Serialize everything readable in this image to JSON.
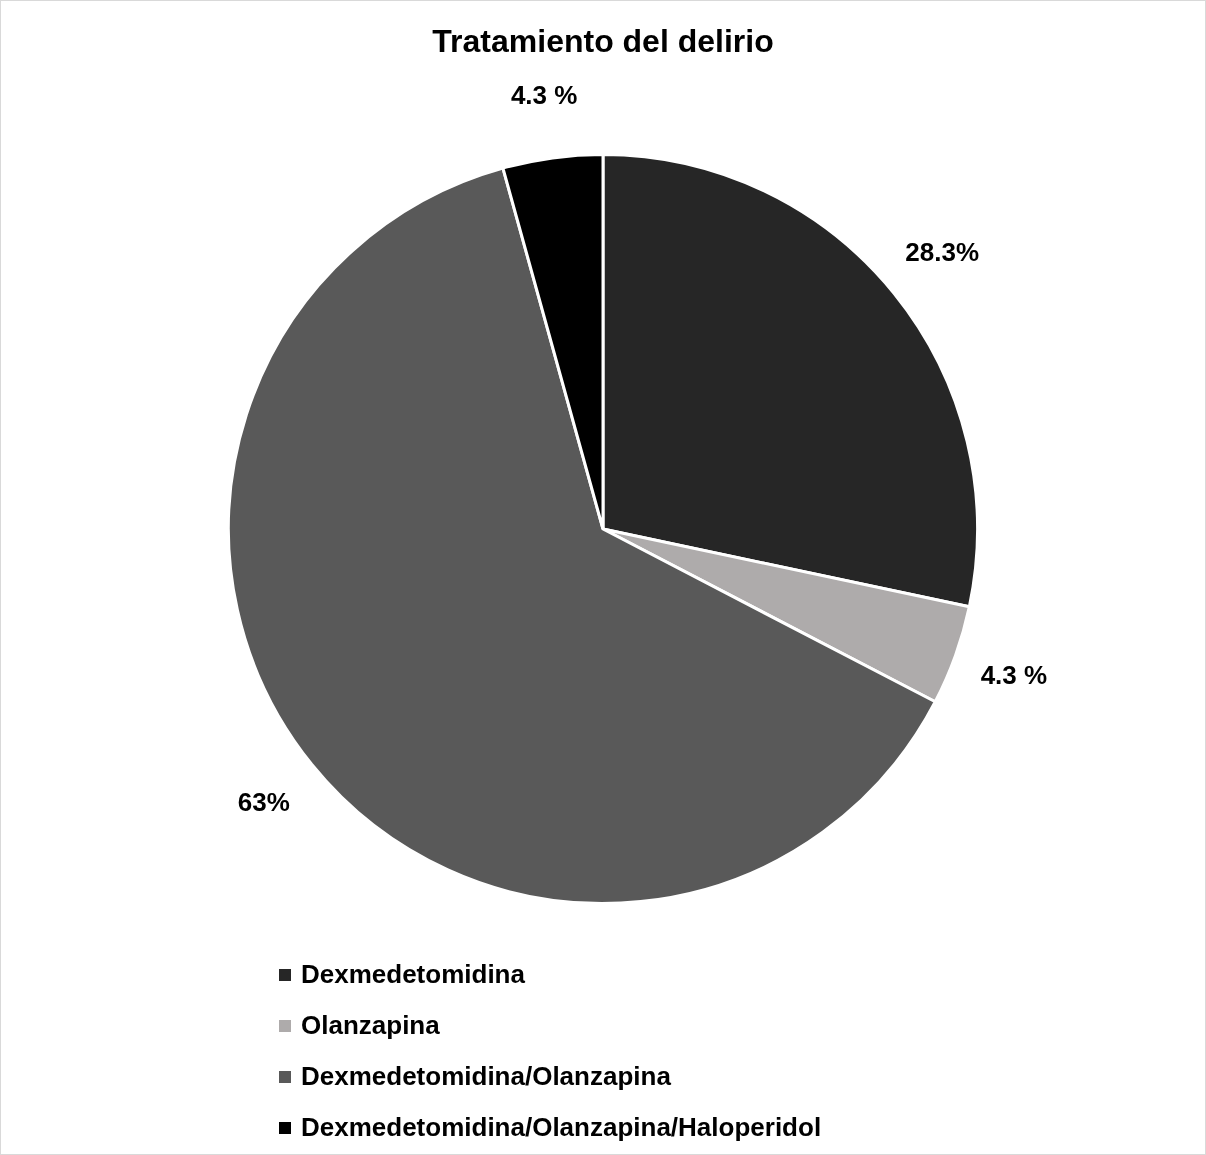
{
  "chart_data": {
    "type": "pie",
    "title": "Tratamiento del delirio",
    "categories": [
      "Dexmedetomidina",
      "Olanzapina",
      "Dexmedetomidina/Olanzapina",
      "Dexmedetomidina/Olanzapina/Haloperidol"
    ],
    "values": [
      28.3,
      4.3,
      63,
      4.3
    ],
    "value_labels": [
      "28.3%",
      "4.3 %",
      "63%",
      "4.3 %"
    ],
    "colors": [
      "#262626",
      "#aeabab",
      "#595959",
      "#000000"
    ],
    "legend": "bottom"
  }
}
